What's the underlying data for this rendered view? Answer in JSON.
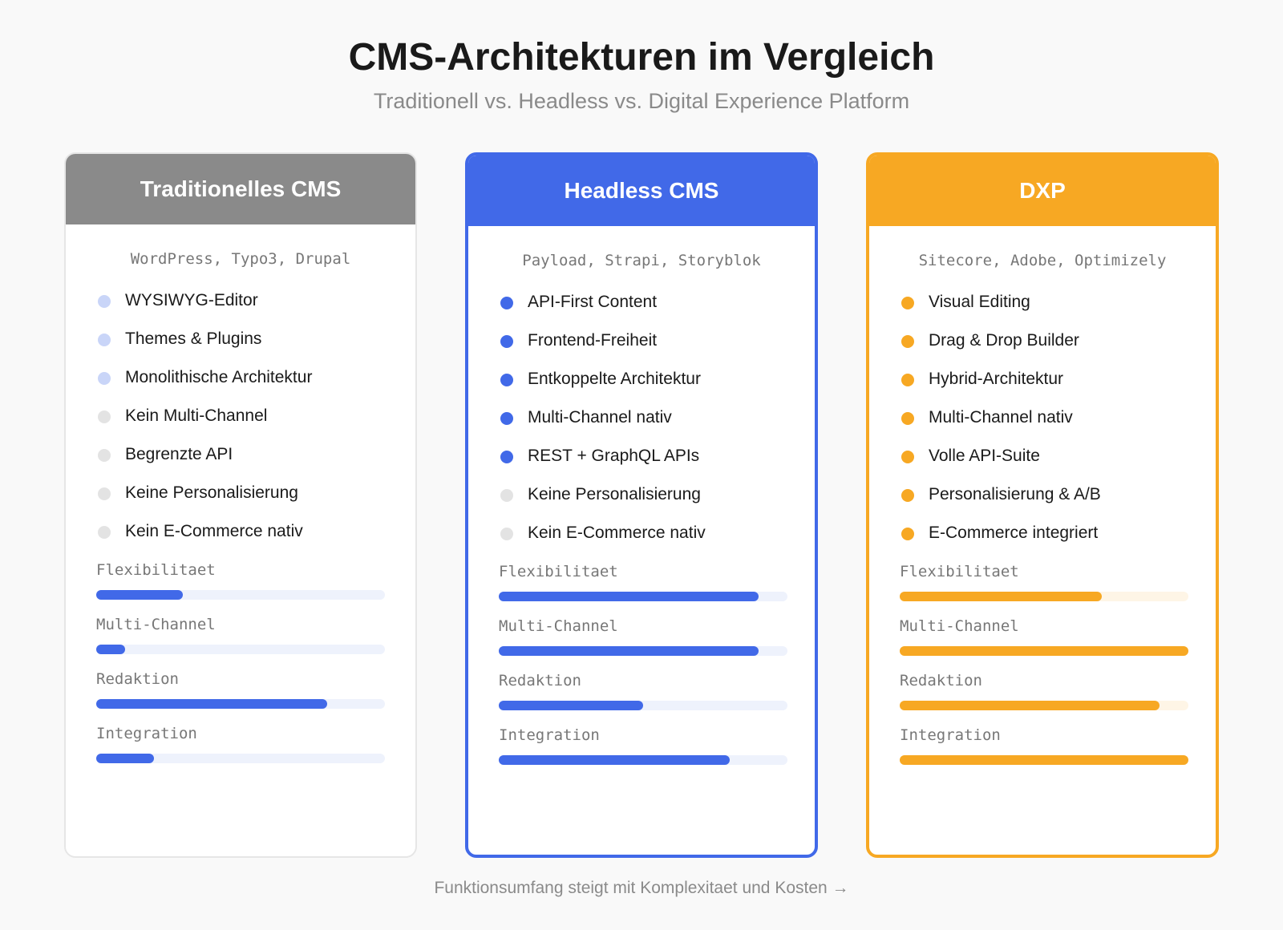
{
  "header": {
    "title": "CMS-Architekturen im Vergleich",
    "subtitle": "Traditionell vs. Headless vs. Digital Experience Platform"
  },
  "scale": [
    0,
    100
  ],
  "cards": [
    {
      "title": "Traditionelles CMS",
      "color": "#8a8a8a",
      "bar_color": "#4169e8",
      "track_color": "#eef2fc",
      "border": "#e6e6e6",
      "examples": "WordPress, Typo3, Drupal",
      "features": [
        {
          "text": "WYSIWYG-Editor",
          "dot": "#c9d5f8"
        },
        {
          "text": "Themes & Plugins",
          "dot": "#c9d5f8"
        },
        {
          "text": "Monolithische Architektur",
          "dot": "#c9d5f8"
        },
        {
          "text": "Kein Multi-Channel",
          "dot": "#e3e3e3"
        },
        {
          "text": "Begrenzte API",
          "dot": "#e3e3e3"
        },
        {
          "text": "Keine Personalisierung",
          "dot": "#e3e3e3"
        },
        {
          "text": "Kein E-Commerce nativ",
          "dot": "#e3e3e3"
        }
      ],
      "metrics": [
        {
          "label": "Flexibilitaet",
          "value": 30
        },
        {
          "label": "Multi-Channel",
          "value": 10
        },
        {
          "label": "Redaktion",
          "value": 80
        },
        {
          "label": "Integration",
          "value": 20
        }
      ]
    },
    {
      "title": "Headless CMS",
      "color": "#4169e8",
      "bar_color": "#4169e8",
      "track_color": "#eef2fc",
      "border": "#4169e8",
      "examples": "Payload, Strapi, Storyblok",
      "features": [
        {
          "text": "API-First Content",
          "dot": "#4169e8"
        },
        {
          "text": "Frontend-Freiheit",
          "dot": "#4169e8"
        },
        {
          "text": "Entkoppelte Architektur",
          "dot": "#4169e8"
        },
        {
          "text": "Multi-Channel nativ",
          "dot": "#4169e8"
        },
        {
          "text": "REST + GraphQL APIs",
          "dot": "#4169e8"
        },
        {
          "text": "Keine Personalisierung",
          "dot": "#e3e3e3"
        },
        {
          "text": "Kein E-Commerce nativ",
          "dot": "#e3e3e3"
        }
      ],
      "metrics": [
        {
          "label": "Flexibilitaet",
          "value": 90
        },
        {
          "label": "Multi-Channel",
          "value": 90
        },
        {
          "label": "Redaktion",
          "value": 50
        },
        {
          "label": "Integration",
          "value": 80
        }
      ]
    },
    {
      "title": "DXP",
      "color": "#f7a823",
      "bar_color": "#f7a823",
      "track_color": "#fef5e6",
      "border": "#f7a823",
      "examples": "Sitecore, Adobe, Optimizely",
      "features": [
        {
          "text": "Visual Editing",
          "dot": "#f7a823"
        },
        {
          "text": "Drag & Drop Builder",
          "dot": "#f7a823"
        },
        {
          "text": "Hybrid-Architektur",
          "dot": "#f7a823"
        },
        {
          "text": "Multi-Channel nativ",
          "dot": "#f7a823"
        },
        {
          "text": "Volle API-Suite",
          "dot": "#f7a823"
        },
        {
          "text": "Personalisierung & A/B",
          "dot": "#f7a823"
        },
        {
          "text": "E-Commerce integriert",
          "dot": "#f7a823"
        }
      ],
      "metrics": [
        {
          "label": "Flexibilitaet",
          "value": 70
        },
        {
          "label": "Multi-Channel",
          "value": 100
        },
        {
          "label": "Redaktion",
          "value": 90
        },
        {
          "label": "Integration",
          "value": 100
        }
      ]
    }
  ],
  "footer": "Funktionsumfang steigt mit Komplexitaet und Kosten →"
}
